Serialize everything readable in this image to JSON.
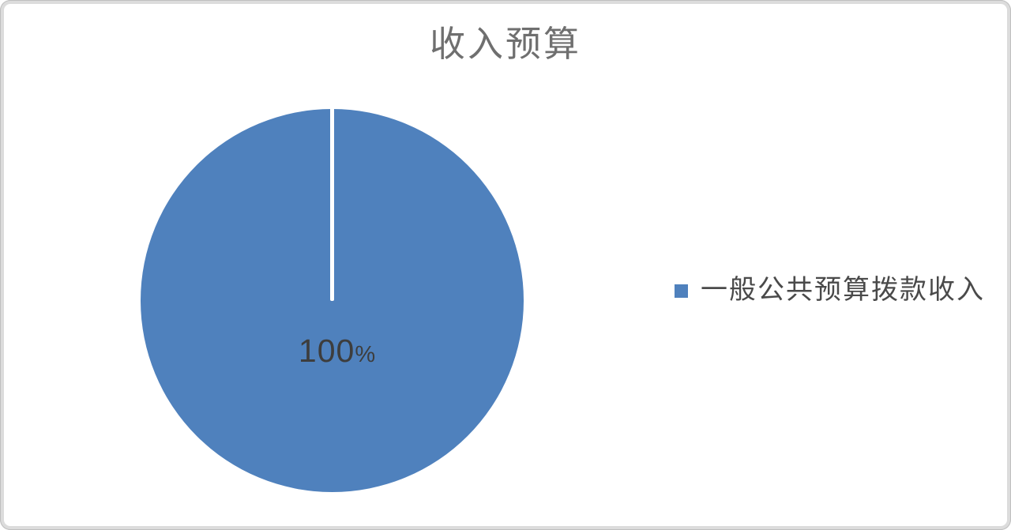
{
  "frame": {
    "background_color": "#ffffff",
    "border_color": "#dcdcdc"
  },
  "chart_data": {
    "type": "pie",
    "title": "收入预算",
    "categories": [
      "一般公共预算拨款收入"
    ],
    "values": [
      100
    ],
    "unit": "percent",
    "colors": [
      "#4F81BD"
    ],
    "legend_position": "right",
    "start_angle_deg": 0,
    "data_labels": [
      {
        "value": "100",
        "suffix": "%",
        "text": "100%"
      }
    ],
    "label_color": "#3d3d3d",
    "title_color": "#6f6f6f",
    "legend_text_color": "#4a4a4a"
  }
}
